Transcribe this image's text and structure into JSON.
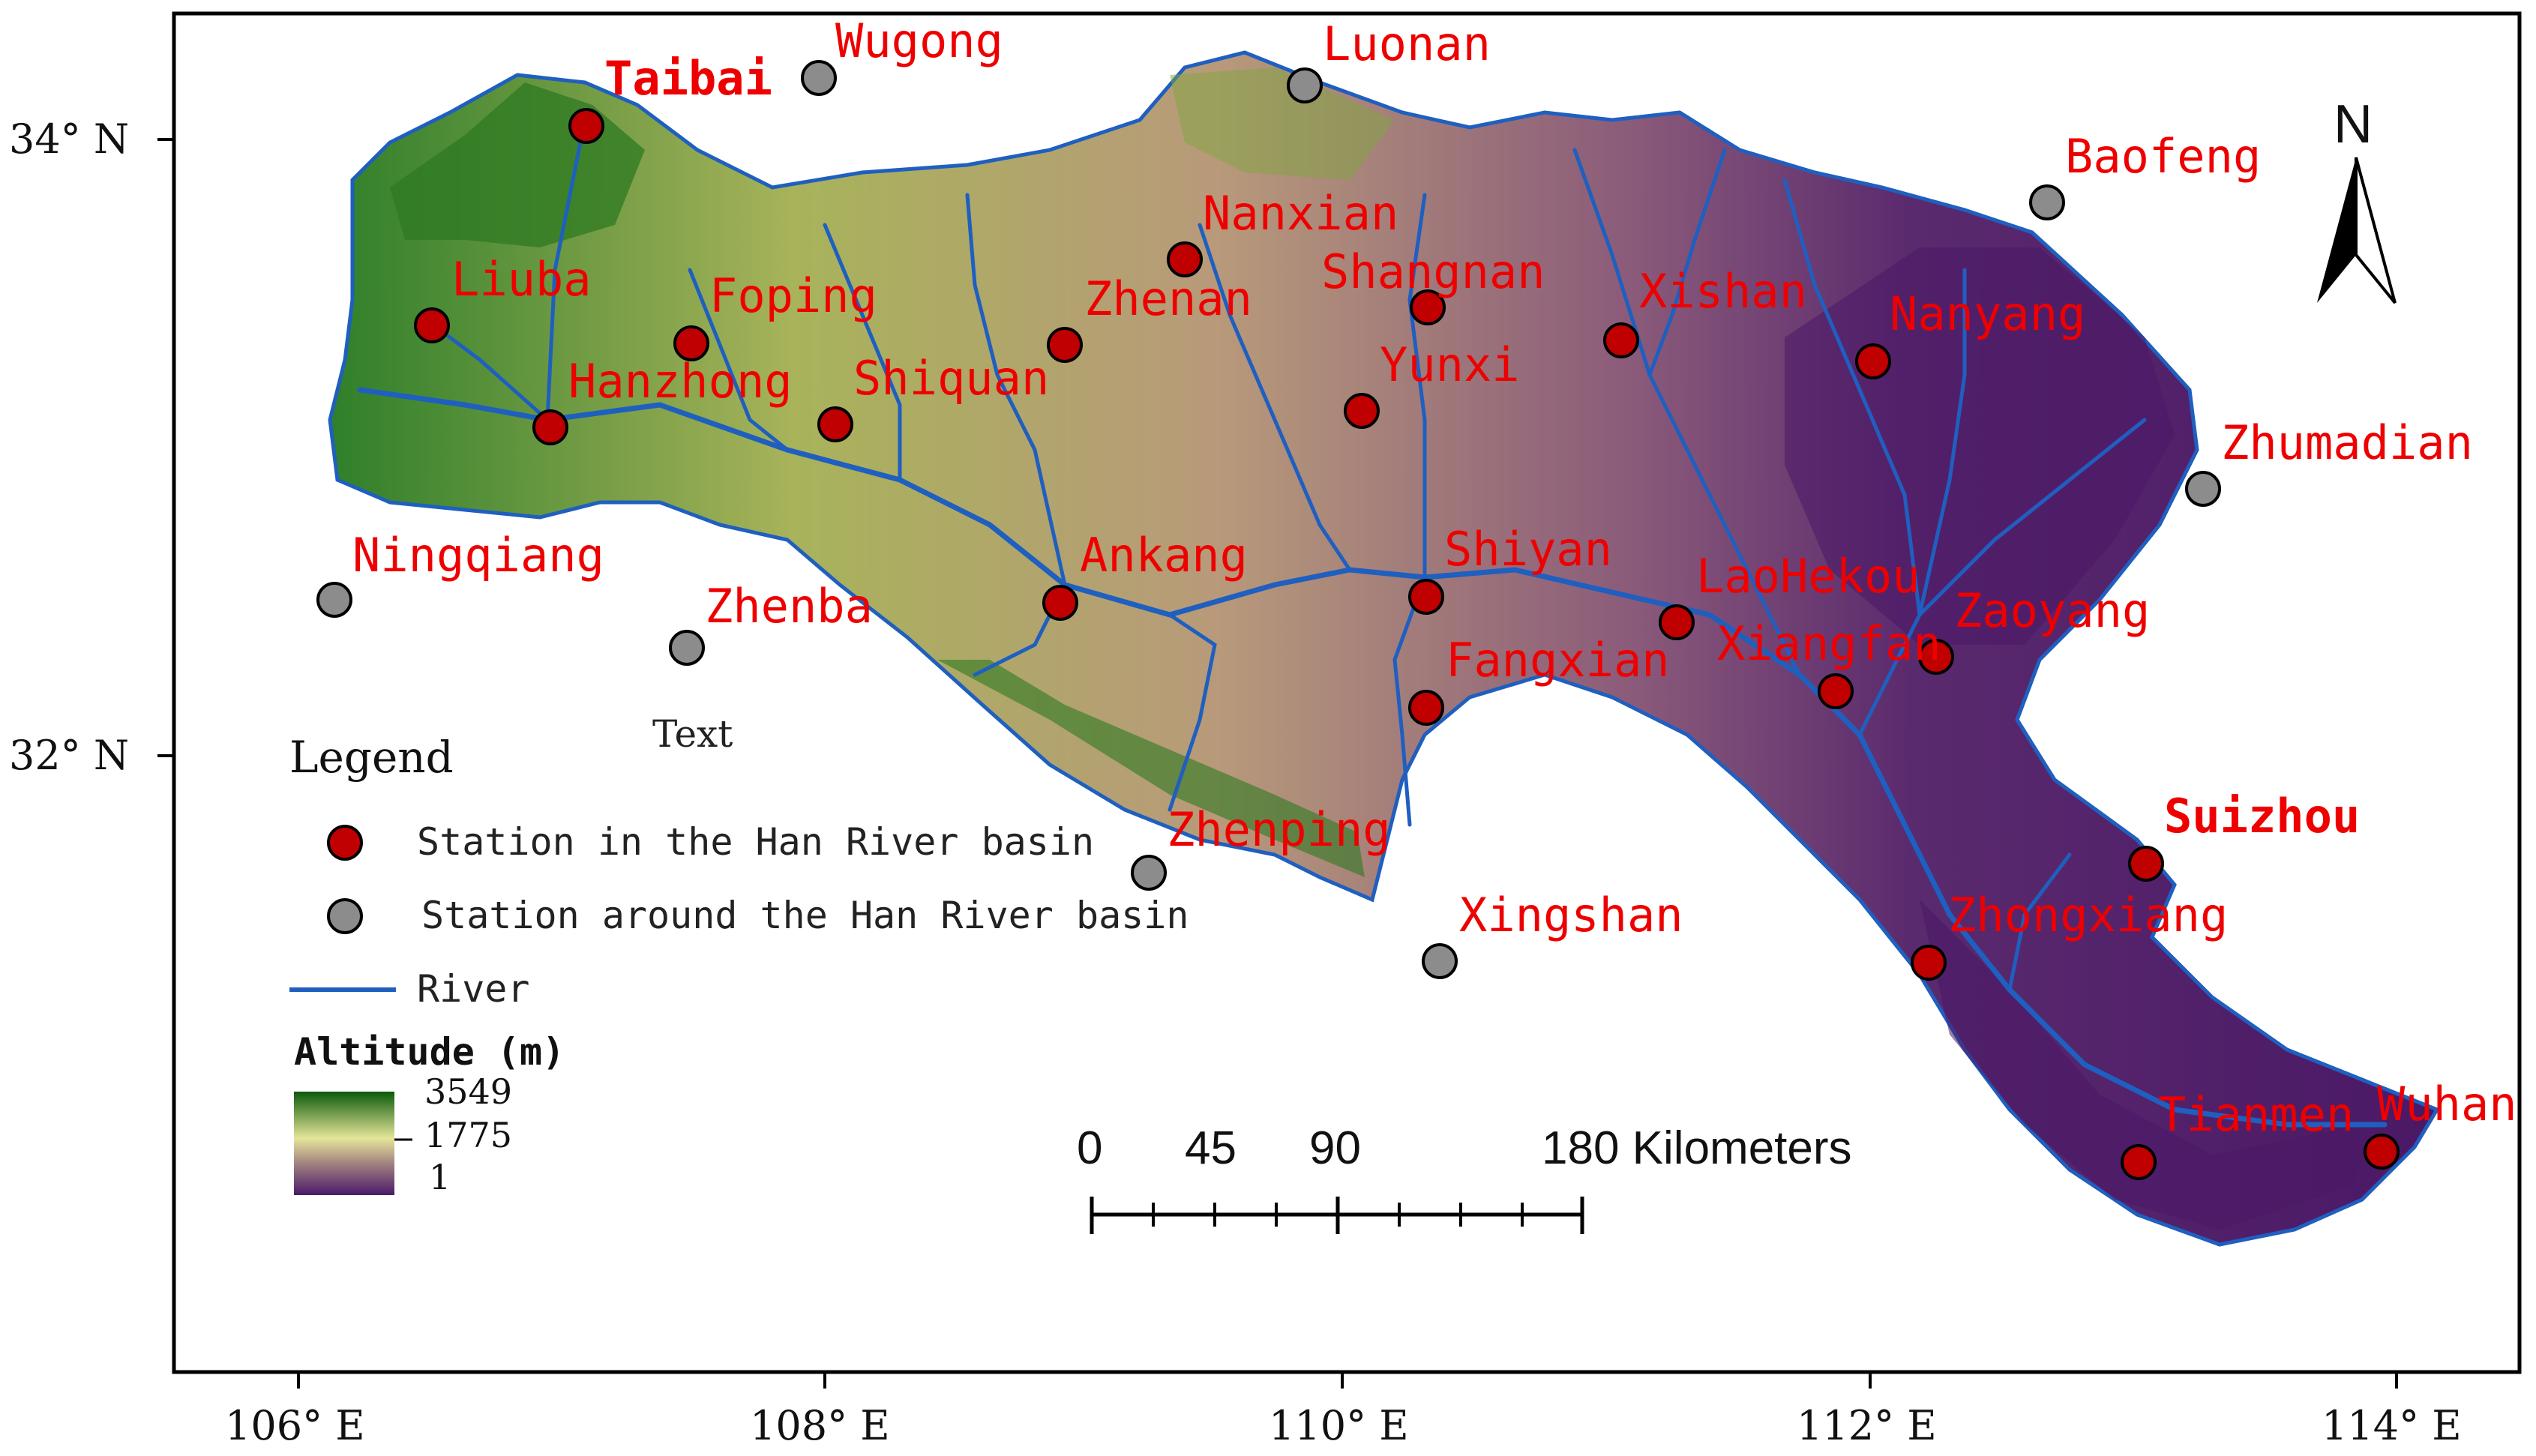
{
  "map": {
    "legend": {
      "title": "Legend",
      "in_basin_label": "Station in the Han River basin",
      "around_basin_label": "Station around the Han River basin",
      "river_label": "River",
      "altitude_title": "Altitude (m)",
      "altitude_max": "3549",
      "altitude_mid": "1775",
      "altitude_min": "1"
    },
    "north_label": "N",
    "placeholder_text": "Text",
    "scale": {
      "t0": "0",
      "t1": "45",
      "t2": "90",
      "t3": "180 Kilometers"
    },
    "lat_ticks": [
      "34° N",
      "32° N"
    ],
    "lon_ticks": [
      "106° E",
      "108° E",
      "110° E",
      "112° E",
      "114° E"
    ],
    "colors": {
      "station_in": "#c00000",
      "station_around": "#8c8c8c",
      "river": "#1f5fbf",
      "label": "#ee0000",
      "alt_high": "#0a5a0a",
      "alt_mid": "#e6e69a",
      "alt_low": "#4a1a6a"
    },
    "stations_in": [
      "Taibai",
      "Liuba",
      "Foping",
      "Hanzhong",
      "Shiquan",
      "Nanxian",
      "Zhenan",
      "Shangnan",
      "Yunxi",
      "Xishan",
      "Nanyang",
      "Ankang",
      "Shiyan",
      "LaoHekou",
      "Xiangfan",
      "Zaoyang",
      "Fangxian",
      "Suizhou",
      "Zhongxiang",
      "Tianmen",
      "Wuhan"
    ],
    "stations_around": [
      "Wugong",
      "Luonan",
      "Baofeng",
      "Zhumadian",
      "Ningqiang",
      "Zhenba",
      "Zhenping",
      "Xingshan"
    ]
  }
}
